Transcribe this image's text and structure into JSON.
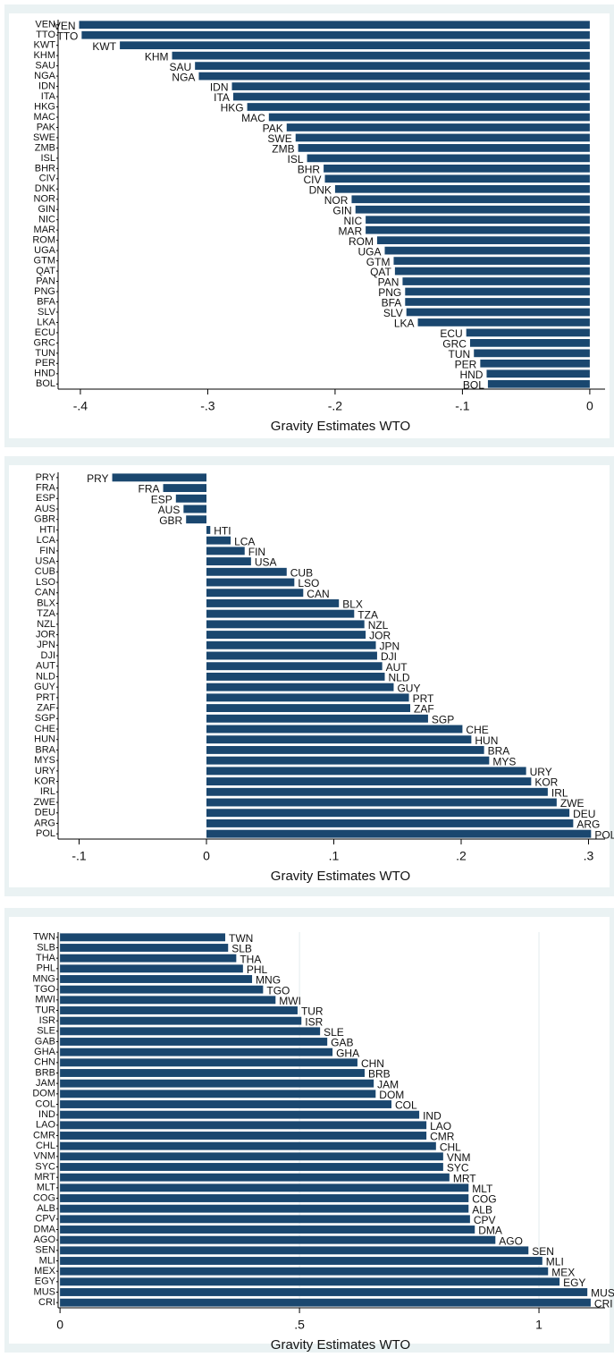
{
  "chart_data": [
    {
      "type": "bar",
      "horizontal": true,
      "x_label": "Gravity Estimates WTO",
      "color": "#1a476f",
      "grid": false,
      "categories": [
        "VEN",
        "TTO",
        "KWT",
        "KHM",
        "SAU",
        "NGA",
        "IDN",
        "ITA",
        "HKG",
        "MAC",
        "PAK",
        "SWE",
        "ZMB",
        "ISL",
        "BHR",
        "CIV",
        "DNK",
        "NOR",
        "GIN",
        "NIC",
        "MAR",
        "ROM",
        "UGA",
        "GTM",
        "QAT",
        "PAN",
        "PNG",
        "BFA",
        "SLV",
        "LKA",
        "ECU",
        "GRC",
        "TUN",
        "PER",
        "HND",
        "BOL"
      ],
      "values": [
        -0.401,
        -0.399,
        -0.369,
        -0.328,
        -0.31,
        -0.307,
        -0.281,
        -0.28,
        -0.269,
        -0.252,
        -0.238,
        -0.231,
        -0.229,
        -0.222,
        -0.209,
        -0.208,
        -0.2,
        -0.187,
        -0.184,
        -0.176,
        -0.176,
        -0.167,
        -0.161,
        -0.154,
        -0.153,
        -0.147,
        -0.145,
        -0.145,
        -0.144,
        -0.135,
        -0.097,
        -0.094,
        -0.091,
        -0.086,
        -0.081,
        -0.08
      ],
      "xlim": [
        -0.4175,
        0.012
      ],
      "xticks": [
        {
          "value": -0.4,
          "label": "-.4"
        },
        {
          "value": -0.3,
          "label": "-.3"
        },
        {
          "value": -0.2,
          "label": "-.2"
        },
        {
          "value": -0.1,
          "label": "-.1"
        },
        0
      ]
    },
    {
      "type": "bar",
      "horizontal": true,
      "x_label": "Gravity Estimates WTO",
      "color": "#1a476f",
      "grid": false,
      "categories": [
        "PRY",
        "FRA",
        "ESP",
        "AUS",
        "GBR",
        "HTI",
        "LCA",
        "FIN",
        "USA",
        "CUB",
        "LSO",
        "CAN",
        "BLX",
        "TZA",
        "NZL",
        "JOR",
        "JPN",
        "DJI",
        "AUT",
        "NLD",
        "GUY",
        "PRT",
        "ZAF",
        "SGP",
        "CHE",
        "HUN",
        "BRA",
        "MYS",
        "URY",
        "KOR",
        "IRL",
        "ZWE",
        "DEU",
        "ARG",
        "POL"
      ],
      "values": [
        -0.074,
        -0.034,
        -0.024,
        -0.018,
        -0.016,
        0.003,
        0.019,
        0.03,
        0.035,
        0.063,
        0.069,
        0.076,
        0.104,
        0.116,
        0.124,
        0.125,
        0.133,
        0.134,
        0.138,
        0.14,
        0.147,
        0.159,
        0.16,
        0.174,
        0.201,
        0.208,
        0.218,
        0.222,
        0.251,
        0.255,
        0.268,
        0.275,
        0.285,
        0.288,
        0.302
      ],
      "xlim": [
        -0.1165,
        0.313
      ],
      "xticks": [
        {
          "value": -0.1,
          "label": "-.1"
        },
        0,
        {
          "value": 0.1,
          "label": ".1"
        },
        {
          "value": 0.2,
          "label": ".2"
        },
        {
          "value": 0.3,
          "label": ".3"
        }
      ]
    },
    {
      "type": "bar",
      "horizontal": true,
      "x_label": "Gravity Estimates WTO",
      "color": "#1a476f",
      "grid": true,
      "categories": [
        "TWN",
        "SLB",
        "THA",
        "PHL",
        "MNG",
        "TGO",
        "MWI",
        "TUR",
        "ISR",
        "SLE",
        "GAB",
        "GHA",
        "CHN",
        "BRB",
        "JAM",
        "DOM",
        "COL",
        "IND",
        "LAO",
        "CMR",
        "CHL",
        "VNM",
        "SYC",
        "MRT",
        "MLT",
        "COG",
        "ALB",
        "CPV",
        "DMA",
        "AGO",
        "SEN",
        "MLI",
        "MEX",
        "EGY",
        "MUS",
        "CRI"
      ],
      "values": [
        0.345,
        0.351,
        0.368,
        0.382,
        0.401,
        0.424,
        0.45,
        0.496,
        0.504,
        0.543,
        0.558,
        0.569,
        0.621,
        0.636,
        0.655,
        0.659,
        0.692,
        0.75,
        0.765,
        0.765,
        0.785,
        0.8,
        0.8,
        0.813,
        0.853,
        0.853,
        0.853,
        0.856,
        0.866,
        0.909,
        0.978,
        1.007,
        1.019,
        1.043,
        1.101,
        1.108
      ],
      "xlim": [
        -0.004,
        1.138
      ],
      "xticks": [
        0,
        {
          "value": 0.5,
          "label": ".5"
        },
        1
      ]
    }
  ]
}
